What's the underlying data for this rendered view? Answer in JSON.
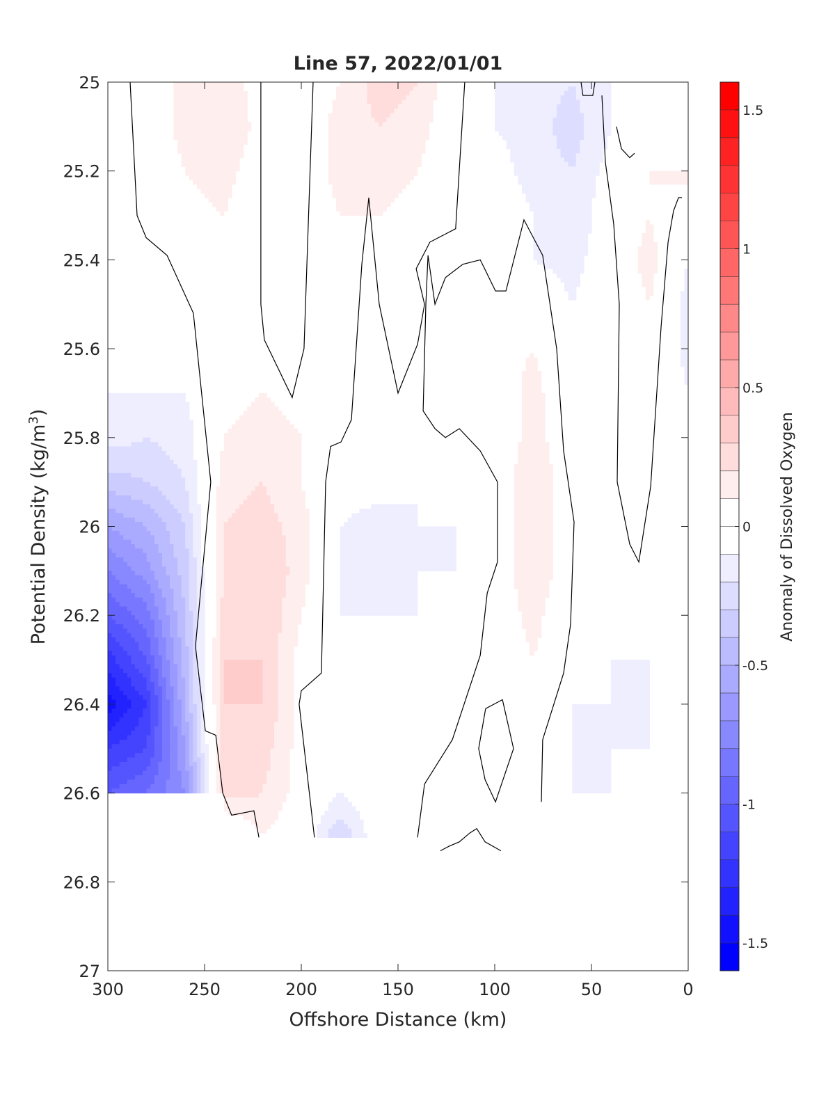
{
  "chart_data": {
    "type": "heatmap",
    "subtype": "filled-contour",
    "title": "Line 57, 2022/01/01",
    "xlabel": "Offshore Distance (km)",
    "ylabel": "Potential Density (kg/m³)",
    "ylabel_parts": {
      "main": "Potential Density (kg/m",
      "sup": "3",
      "end": ")"
    },
    "xlim": [
      300,
      0
    ],
    "ylim": [
      25,
      27
    ],
    "x_reversed": true,
    "y_reversed": true,
    "xticks": [
      300,
      250,
      200,
      150,
      100,
      50,
      0
    ],
    "xtick_labels": [
      "300",
      "250",
      "200",
      "150",
      "100",
      "50",
      "0"
    ],
    "yticks": [
      25,
      25.2,
      25.4,
      25.6,
      25.8,
      26,
      26.2,
      26.4,
      26.6,
      26.8,
      27
    ],
    "ytick_labels": [
      "25",
      "25.2",
      "25.4",
      "25.6",
      "25.8",
      "26",
      "26.2",
      "26.4",
      "26.6",
      "26.8",
      "27"
    ],
    "colorbar": {
      "label": "Anomaly of Dissolved Oxygen",
      "range": [
        -1.6,
        1.6
      ],
      "level_step": 0.1,
      "ticks": [
        1.5,
        1,
        0.5,
        0,
        -0.5,
        -1,
        -1.5
      ],
      "tick_labels": [
        "1.5",
        "1",
        "0.5",
        "0",
        "-0.5",
        "-1",
        "-1.5"
      ],
      "colormap": {
        "negative": "#0000ff",
        "zero": "#ffffff",
        "positive": "#ff0000"
      }
    },
    "grid_x_km": [
      300,
      280,
      260,
      240,
      220,
      200,
      180,
      160,
      140,
      120,
      100,
      80,
      60,
      40,
      20,
      0
    ],
    "grid_y_density": [
      25.0,
      25.1,
      25.2,
      25.3,
      25.4,
      25.5,
      25.6,
      25.7,
      25.8,
      25.9,
      26.0,
      26.1,
      26.2,
      26.3,
      26.4,
      26.5,
      26.6,
      26.7,
      26.8
    ],
    "z": [
      [
        -0.1,
        0,
        0.15,
        0.15,
        0.05,
        0,
        0.1,
        0.25,
        0.2,
        0,
        -0.1,
        -0.15,
        -0.2,
        -0.1,
        null,
        null
      ],
      [
        -0.1,
        0,
        0.15,
        0.2,
        0.05,
        0,
        0.15,
        0.2,
        0.15,
        0,
        -0.1,
        -0.15,
        -0.25,
        -0.1,
        null,
        null
      ],
      [
        -0.1,
        0,
        0.1,
        0.15,
        0,
        0,
        0.15,
        0.15,
        0.1,
        0,
        -0.05,
        -0.15,
        -0.2,
        -0.05,
        0.1,
        0.15
      ],
      [
        -0.1,
        0,
        0.05,
        0.1,
        0,
        0,
        0.1,
        0.1,
        0.05,
        0,
        0,
        -0.1,
        -0.2,
        0,
        0.1,
        -0.05
      ],
      [
        -0.05,
        0,
        0,
        0.1,
        0,
        0,
        0.1,
        0.05,
        0.05,
        0,
        0,
        -0.1,
        -0.15,
        0,
        0.15,
        -0.1
      ],
      [
        0,
        0,
        -0.05,
        0.05,
        0.05,
        0,
        0.1,
        0,
        0,
        0,
        0,
        0.05,
        -0.1,
        0,
        0.1,
        -0.15
      ],
      [
        -0.1,
        -0.05,
        -0.1,
        0,
        0.05,
        0,
        0.05,
        0,
        0,
        0,
        0.05,
        0.1,
        -0.05,
        0,
        0.1,
        -0.15
      ],
      [
        -0.1,
        -0.1,
        -0.1,
        0.05,
        0.1,
        0.05,
        0,
        0,
        -0.05,
        0,
        0,
        0.15,
        -0.05,
        0,
        0.05,
        -0.1
      ],
      [
        -0.15,
        -0.2,
        -0.15,
        0.1,
        0.15,
        0.1,
        0,
        0,
        -0.05,
        0,
        0,
        0.15,
        0,
        0,
        0.05,
        -0.05
      ],
      [
        -0.35,
        -0.3,
        -0.2,
        0.15,
        0.2,
        0.1,
        -0.05,
        -0.05,
        -0.1,
        -0.05,
        0,
        0.2,
        0,
        0,
        0,
        0
      ],
      [
        -0.6,
        -0.5,
        -0.3,
        0.2,
        0.25,
        0.15,
        -0.1,
        -0.15,
        -0.1,
        -0.1,
        0,
        0.2,
        0,
        -0.05,
        0,
        0
      ],
      [
        -0.8,
        -0.65,
        -0.35,
        0.2,
        0.3,
        0.15,
        -0.1,
        -0.15,
        -0.1,
        -0.1,
        0,
        0.2,
        0,
        -0.05,
        -0.05,
        0
      ],
      [
        -1.0,
        -0.85,
        -0.4,
        0.25,
        0.3,
        0.1,
        -0.1,
        -0.1,
        -0.1,
        -0.05,
        0,
        0.15,
        -0.05,
        -0.1,
        -0.05,
        0
      ],
      [
        -1.25,
        -1.0,
        -0.45,
        0.3,
        0.3,
        0.05,
        -0.05,
        -0.05,
        -0.1,
        0,
        0,
        0.1,
        -0.05,
        -0.1,
        -0.1,
        0
      ],
      [
        -1.45,
        -1.2,
        -0.5,
        0.3,
        0.3,
        0.05,
        -0.05,
        -0.05,
        -0.1,
        0,
        0,
        0.05,
        -0.1,
        -0.1,
        -0.1,
        0
      ],
      [
        -1.2,
        -1.1,
        -0.6,
        0.3,
        0.25,
        0.05,
        -0.05,
        0,
        -0.05,
        0.1,
        0,
        0.05,
        -0.1,
        -0.1,
        -0.1,
        0
      ],
      [
        -1.0,
        -0.9,
        -0.7,
        0.25,
        0.2,
        0.05,
        -0.1,
        0,
        0,
        0.1,
        0,
        0.05,
        -0.1,
        -0.1,
        -0.05,
        0
      ],
      [
        null,
        null,
        null,
        -0.1,
        0.1,
        0,
        -0.3,
        0,
        0,
        0,
        0,
        0.05,
        null,
        null,
        null,
        null
      ],
      [
        null,
        null,
        null,
        null,
        null,
        null,
        null,
        null,
        null,
        -0.1,
        -0.1,
        null,
        null,
        null,
        null,
        null
      ]
    ],
    "zero_contours": [
      [
        [
          288.5,
          25
        ],
        [
          284.9,
          25.3
        ],
        [
          280.2,
          25.35
        ],
        [
          269.4,
          25.39
        ],
        [
          255.8,
          25.52
        ],
        [
          246.8,
          25.9
        ],
        [
          254.7,
          26.27
        ],
        [
          249.6,
          26.46
        ],
        [
          244.2,
          26.47
        ],
        [
          240.6,
          26.6
        ],
        [
          236,
          26.65
        ],
        [
          224.5,
          26.64
        ],
        [
          221.9,
          26.7
        ]
      ],
      [
        [
          220.9,
          25
        ],
        [
          220.9,
          25.5
        ],
        [
          219.1,
          25.58
        ],
        [
          204.7,
          25.71
        ],
        [
          198.6,
          25.6
        ],
        [
          193.9,
          25
        ]
      ],
      [
        [
          193.2,
          26.7
        ],
        [
          201.1,
          26.4
        ],
        [
          200.0,
          26.37
        ],
        [
          189.6,
          26.33
        ],
        [
          187.4,
          25.9
        ],
        [
          184.9,
          25.82
        ],
        [
          179.5,
          25.81
        ],
        [
          174.1,
          25.76
        ],
        [
          168.7,
          25.41
        ],
        [
          165.1,
          25.26
        ],
        [
          159.7,
          25.5
        ],
        [
          150.0,
          25.7
        ],
        [
          139.9,
          25.59
        ],
        [
          136.3,
          25.5
        ],
        [
          140.6,
          25.42
        ],
        [
          133.5,
          25.36
        ],
        [
          120.2,
          25.33
        ],
        [
          115.5,
          25
        ]
      ],
      [
        [
          139.9,
          26.7
        ],
        [
          136.3,
          26.58
        ],
        [
          121.9,
          26.48
        ],
        [
          107.5,
          26.29
        ],
        [
          103.9,
          26.15
        ],
        [
          98.6,
          26.08
        ],
        [
          98.6,
          25.9
        ],
        [
          107.5,
          25.83
        ],
        [
          118.3,
          25.78
        ],
        [
          125.5,
          25.8
        ],
        [
          130.9,
          25.78
        ],
        [
          137.0,
          25.74
        ],
        [
          135.6,
          25.5
        ],
        [
          134.5,
          25.39
        ],
        [
          130.9,
          25.5
        ],
        [
          125.5,
          25.44
        ],
        [
          116.5,
          25.41
        ],
        [
          107.5,
          25.4
        ],
        [
          99.6,
          25.47
        ],
        [
          94.2,
          25.47
        ],
        [
          84.9,
          25.31
        ],
        [
          75.2,
          25.39
        ],
        [
          68.0,
          25.6
        ],
        [
          64.4,
          25.83
        ],
        [
          59.0,
          25.99
        ],
        [
          60.8,
          26.22
        ],
        [
          64.4,
          26.33
        ],
        [
          75.2,
          26.48
        ],
        [
          75.9,
          26.62
        ]
      ],
      [
        [
          104.7,
          26.41
        ],
        [
          96.0,
          26.39
        ],
        [
          90.3,
          26.5
        ],
        [
          99.6,
          26.62
        ],
        [
          105.0,
          26.57
        ],
        [
          108.3,
          26.5
        ],
        [
          104.7,
          26.41
        ]
      ],
      [
        [
          128.1,
          26.73
        ],
        [
          123.7,
          26.72
        ],
        [
          118.3,
          26.71
        ],
        [
          112.9,
          26.69
        ],
        [
          109.3,
          26.68
        ],
        [
          105.0,
          26.71
        ],
        [
          96.8,
          26.73
        ]
      ],
      [
        [
          44.6,
          25.03
        ],
        [
          42.8,
          25.18
        ],
        [
          38.5,
          25.32
        ],
        [
          35.6,
          25.5
        ],
        [
          36.7,
          25.9
        ],
        [
          30.2,
          26.04
        ],
        [
          25.5,
          26.08
        ],
        [
          19.4,
          25.91
        ],
        [
          14.0,
          25.55
        ],
        [
          10.4,
          25.36
        ],
        [
          7.6,
          25.29
        ],
        [
          5.0,
          25.26
        ],
        [
          3.2,
          25.26
        ]
      ],
      [
        [
          55.4,
          25
        ],
        [
          54.4,
          25.03
        ],
        [
          49.3,
          25.03
        ],
        [
          48.2,
          25
        ]
      ],
      [
        [
          37.1,
          25.1
        ],
        [
          34.5,
          25.15
        ],
        [
          30.2,
          25.17
        ],
        [
          27.7,
          25.16
        ]
      ]
    ]
  }
}
